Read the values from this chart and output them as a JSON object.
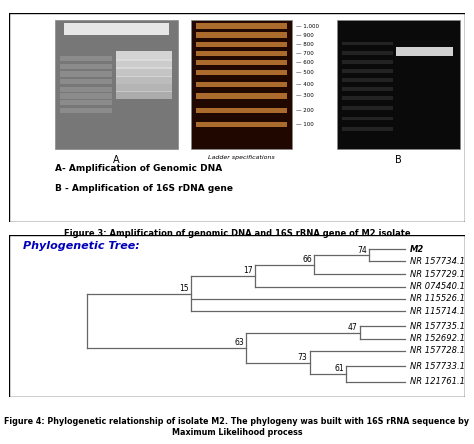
{
  "fig_width": 4.74,
  "fig_height": 4.44,
  "dpi": 100,
  "figure3_caption": "Figure 3: Amplification of genomic DNA and 16S rRNA gene of M2 isolate",
  "figure4_caption": "Figure 4: Phylogenetic relationship of isolate M2. The phylogeny was built with 16S rRNA sequence by\nMaximum Likelihood process",
  "phylo_title": "Phylogenetic Tree:",
  "phylo_title_color": "#0000BB",
  "gel_legend_line1": "A- Amplification of Genomic DNA",
  "gel_legend_line2": "B - Amplification of 16S rDNA gene",
  "ladder_labels": [
    "1,000",
    "900",
    "800",
    "700",
    "600",
    "500",
    "400",
    "300",
    "200",
    "100"
  ],
  "tree_line_color": "#666666"
}
